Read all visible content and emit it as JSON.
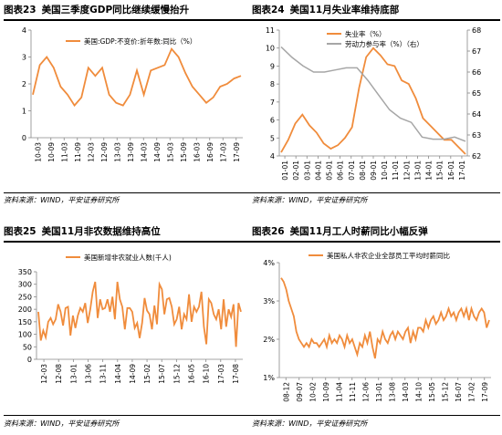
{
  "source_label": "资料来源：WIND，平安证券研究所",
  "panels": [
    {
      "fig": "图表23",
      "title": "美国三季度GDP同比继续缓慢抬升",
      "chart_data": {
        "type": "line",
        "legend": [
          "美国:GDP:不变价:折年数:同比（%）"
        ],
        "series_colors": [
          "#F08C3C"
        ],
        "ylim": [
          0,
          4
        ],
        "yticks": [
          0,
          1,
          2,
          3,
          4
        ],
        "xticks": [
          "10-03",
          "10-09",
          "11-03",
          "11-09",
          "12-03",
          "12-09",
          "13-03",
          "13-09",
          "14-03",
          "14-09",
          "15-03",
          "15-09",
          "16-03",
          "16-09",
          "17-03",
          "17-09"
        ],
        "series": [
          {
            "name": "美国:GDP:不变价:折年数:同比（%）",
            "x": [
              "10-03",
              "10-06",
              "10-09",
              "10-12",
              "11-03",
              "11-06",
              "11-09",
              "11-12",
              "12-03",
              "12-06",
              "12-09",
              "12-12",
              "13-03",
              "13-06",
              "13-09",
              "13-12",
              "14-03",
              "14-06",
              "14-09",
              "14-12",
              "15-03",
              "15-06",
              "15-09",
              "15-12",
              "16-03",
              "16-06",
              "16-09",
              "16-12",
              "17-03",
              "17-06",
              "17-09"
            ],
            "values": [
              1.6,
              2.7,
              3.0,
              2.6,
              1.9,
              1.6,
              1.2,
              1.5,
              2.6,
              2.3,
              2.6,
              1.6,
              1.3,
              1.2,
              1.6,
              2.5,
              1.6,
              2.5,
              2.6,
              2.7,
              3.3,
              3.0,
              2.4,
              1.9,
              1.6,
              1.3,
              1.5,
              1.9,
              2.0,
              2.2,
              2.3
            ]
          }
        ]
      }
    },
    {
      "fig": "图表24",
      "title": "美国11月失业率维持底部",
      "chart_data": {
        "type": "line",
        "legend": [
          "失业率（%）",
          "劳动力参与率（%）（右）"
        ],
        "series_colors": [
          "#F08C3C",
          "#A6A6A6"
        ],
        "ylim": [
          4,
          11
        ],
        "yticks": [
          4,
          5,
          6,
          7,
          8,
          9,
          10,
          11
        ],
        "y2lim": [
          62,
          68
        ],
        "y2ticks": [
          62,
          63,
          64,
          65,
          66,
          67,
          68
        ],
        "xticks": [
          "01-01",
          "02-01",
          "03-01",
          "04-01",
          "05-01",
          "06-01",
          "07-01",
          "08-01",
          "09-01",
          "10-01",
          "11-01",
          "12-01",
          "13-01",
          "14-01",
          "15-01",
          "16-01",
          "17-01"
        ],
        "series": [
          {
            "name": "失业率（%）",
            "axis": "left",
            "x": [
              "01-01",
              "01-09",
              "02-06",
              "03-06",
              "04-01",
              "05-01",
              "06-01",
              "06-12",
              "07-06",
              "08-01",
              "08-06",
              "09-01",
              "09-06",
              "09-10",
              "10-06",
              "11-01",
              "11-09",
              "12-06",
              "13-01",
              "13-09",
              "14-06",
              "15-01",
              "15-06",
              "16-01",
              "16-09",
              "17-03",
              "17-11"
            ],
            "values": [
              4.2,
              4.9,
              5.8,
              6.3,
              5.7,
              5.3,
              4.7,
              4.4,
              4.6,
              5.0,
              5.6,
              7.8,
              9.5,
              10.0,
              9.6,
              9.1,
              9.0,
              8.2,
              8.0,
              7.2,
              6.1,
              5.7,
              5.3,
              4.9,
              4.9,
              4.5,
              4.1
            ]
          },
          {
            "name": "劳动力参与率（%）（右）",
            "axis": "right",
            "x": [
              "01-01",
              "02-01",
              "03-01",
              "04-01",
              "05-01",
              "06-01",
              "07-01",
              "08-01",
              "09-01",
              "10-01",
              "11-01",
              "12-01",
              "13-01",
              "14-01",
              "15-01",
              "16-01",
              "17-01",
              "17-11"
            ],
            "values": [
              67.2,
              66.7,
              66.3,
              66.0,
              66.0,
              66.1,
              66.2,
              66.2,
              65.6,
              64.9,
              64.2,
              63.8,
              63.6,
              62.9,
              62.8,
              62.8,
              62.9,
              62.7
            ]
          }
        ]
      }
    },
    {
      "fig": "图表25",
      "title": "美国11月非农数据维持高位",
      "chart_data": {
        "type": "line",
        "legend": [
          "美国新增非农就业人数(千人)"
        ],
        "series_colors": [
          "#F08C3C"
        ],
        "ylim": [
          0,
          350
        ],
        "yticks": [
          0,
          50,
          100,
          150,
          200,
          250,
          300,
          350
        ],
        "xticks": [
          "12-03",
          "12-08",
          "13-01",
          "13-06",
          "13-11",
          "14-04",
          "14-09",
          "15-02",
          "15-07",
          "15-12",
          "16-05",
          "16-10",
          "17-03",
          "17-08"
        ],
        "series": [
          {
            "name": "美国新增非农就业人数(千人)",
            "values": [
              190,
              75,
              115,
              88,
              150,
              165,
              140,
              160,
              220,
              190,
              135,
              205,
              210,
              95,
              175,
              125,
              175,
              205,
              190,
              225,
              145,
              200,
              270,
              310,
              165,
              240,
              200,
              205,
              240,
              190,
              250,
              160,
              310,
              240,
              210,
              120,
              205,
              205,
              190,
              125,
              145,
              85,
              145,
              245,
              195,
              180,
              120,
              215,
              140,
              300,
              280,
              180,
              240,
              245,
              210,
              140,
              160,
              210,
              120,
              180,
              160,
              260,
              150,
              210,
              190,
              210,
              270,
              130,
              60,
              240,
              225,
              180,
              160,
              200,
              120,
              240,
              130,
              200,
              170,
              220,
              50,
              225,
              190
            ]
          }
        ]
      }
    },
    {
      "fig": "图表26",
      "title": "美国11月工人时薪同比小幅反弹",
      "chart_data": {
        "type": "line",
        "legend": [
          "美国私人非农企业全部员工平均时薪同比"
        ],
        "series_colors": [
          "#F08C3C"
        ],
        "ylim": [
          1,
          4
        ],
        "yticks": [
          "1%",
          "2%",
          "3%",
          "4%"
        ],
        "xticks": [
          "08-12",
          "09-07",
          "10-02",
          "10-09",
          "11-04",
          "11-11",
          "12-06",
          "13-01",
          "13-08",
          "14-03",
          "14-10",
          "15-05",
          "15-12",
          "16-07",
          "17-02",
          "17-09"
        ],
        "series": [
          {
            "name": "美国私人非农企业全部员工平均时薪同比",
            "values": [
              3.6,
              3.5,
              3.3,
              3.0,
              2.8,
              2.6,
              2.2,
              2.0,
              1.9,
              1.8,
              1.9,
              1.8,
              2.0,
              1.9,
              1.9,
              1.8,
              1.9,
              2.0,
              1.8,
              2.1,
              1.9,
              2.0,
              1.9,
              2.1,
              2.0,
              1.8,
              2.1,
              1.9,
              2.0,
              1.8,
              1.6,
              1.9,
              1.8,
              2.1,
              1.9,
              2.2,
              1.8,
              1.5,
              2.0,
              1.9,
              2.2,
              2.0,
              1.9,
              2.1,
              2.2,
              2.0,
              2.2,
              2.1,
              2.0,
              2.2,
              2.3,
              1.9,
              2.2,
              2.0,
              2.3,
              2.3,
              2.2,
              2.5,
              2.3,
              2.5,
              2.6,
              2.4,
              2.5,
              2.7,
              2.5,
              2.6,
              2.8,
              2.6,
              2.7,
              2.5,
              2.7,
              2.8,
              2.6,
              2.8,
              2.5,
              2.8,
              2.6,
              2.5,
              2.7,
              2.8,
              2.7,
              2.3,
              2.5
            ]
          }
        ]
      }
    }
  ]
}
